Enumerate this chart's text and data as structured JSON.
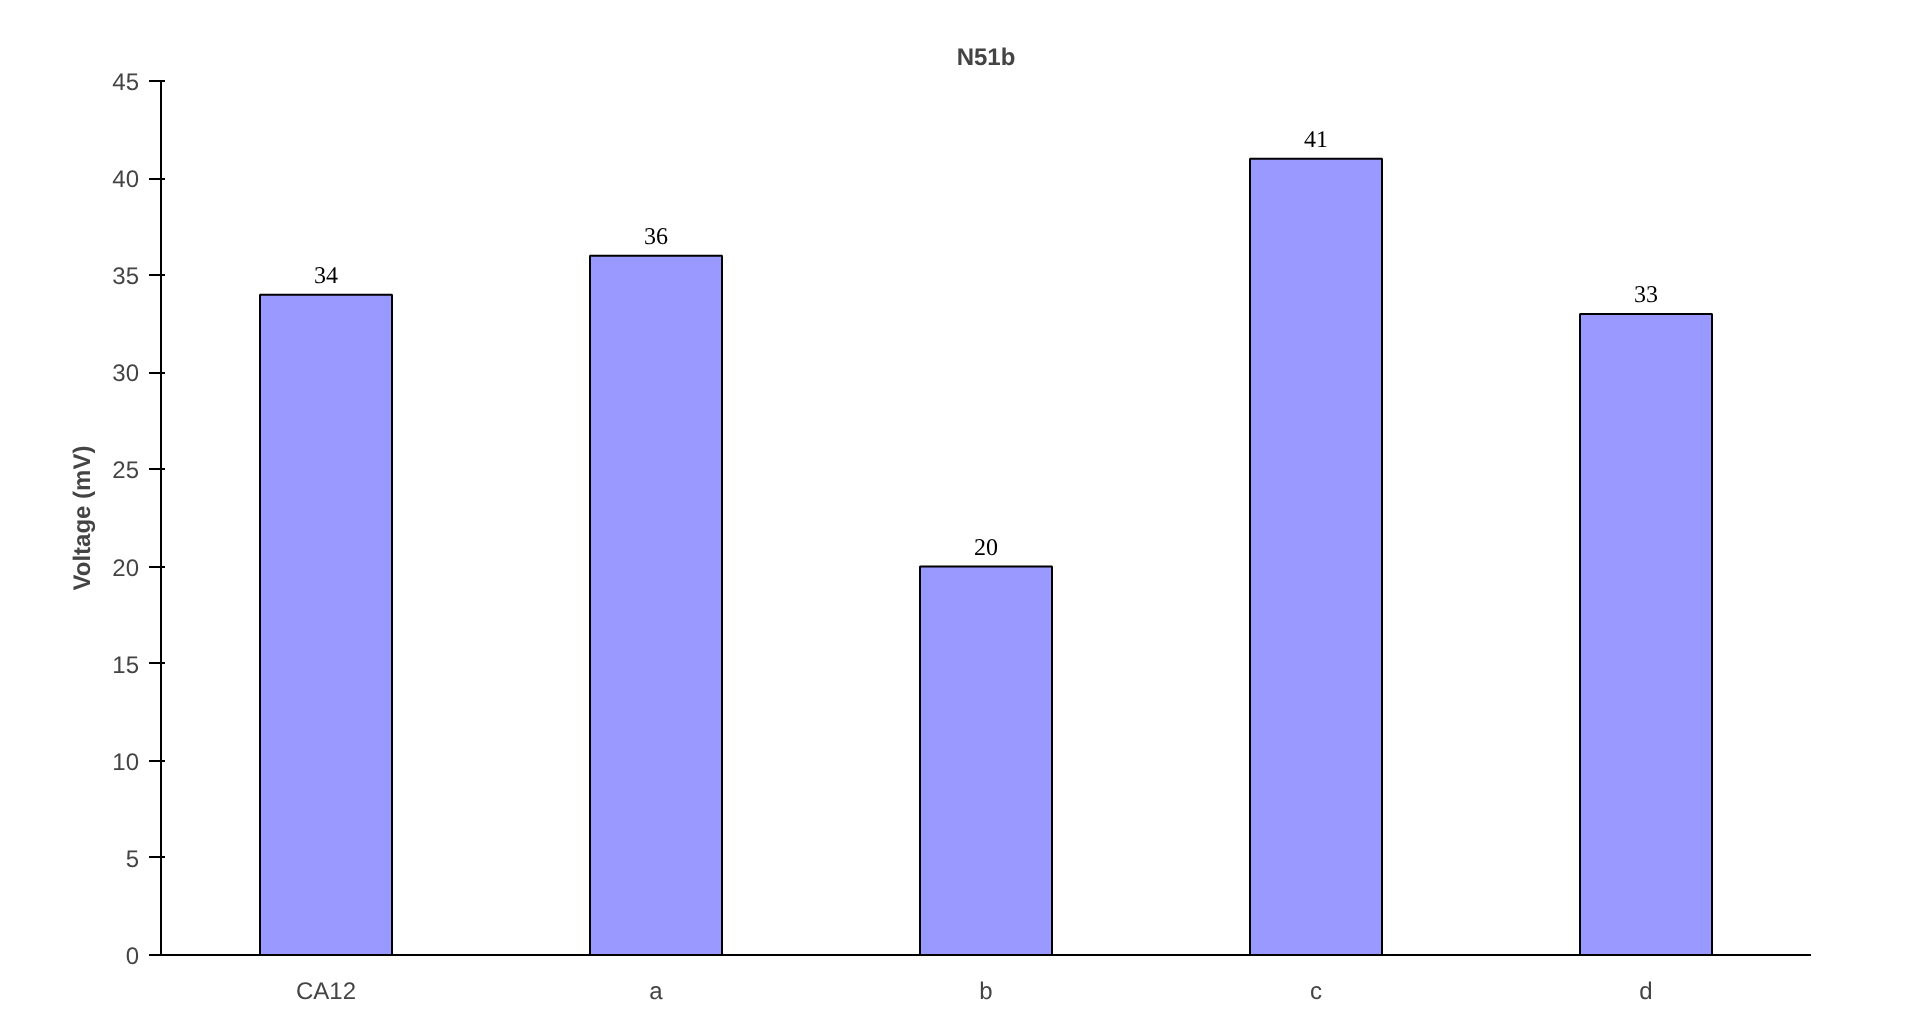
{
  "chart_data": {
    "type": "bar",
    "title": "N51b",
    "ylabel": "Voltage (mV)",
    "categories": [
      "CA12",
      "a",
      "b",
      "c",
      "d"
    ],
    "values": [
      34,
      36,
      20,
      41,
      33
    ],
    "color": "#9999ff",
    "ylim": [
      0,
      45
    ],
    "yticks": [
      0,
      5,
      10,
      15,
      20,
      25,
      30,
      35,
      40,
      45
    ],
    "grid": false,
    "data_labels": true
  }
}
